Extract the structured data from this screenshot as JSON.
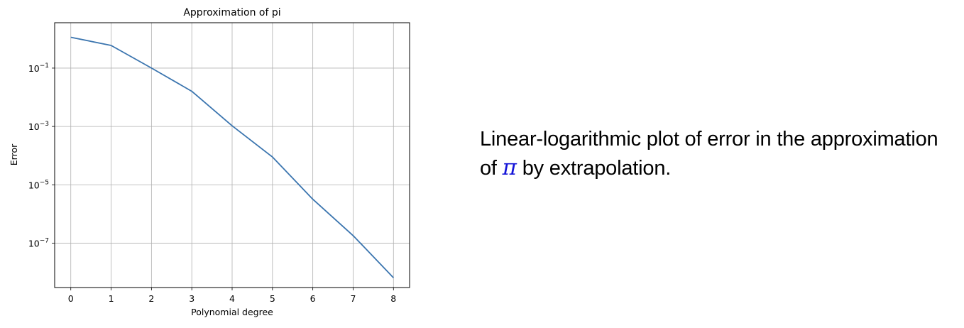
{
  "chart_data": {
    "type": "line",
    "title": "Approximation of pi",
    "xlabel": "Polynomial degree",
    "ylabel": "Error",
    "yscale": "log",
    "grid": true,
    "x": [
      0,
      1,
      2,
      3,
      4,
      5,
      6,
      7,
      8
    ],
    "xticks": [
      "0",
      "1",
      "2",
      "3",
      "4",
      "5",
      "6",
      "7",
      "8"
    ],
    "yticks": [
      {
        "value": 0.1,
        "base": "10",
        "exp": "−1"
      },
      {
        "value": 0.001,
        "base": "10",
        "exp": "−3"
      },
      {
        "value": 1e-05,
        "base": "10",
        "exp": "−5"
      },
      {
        "value": 1e-07,
        "base": "10",
        "exp": "−7"
      }
    ],
    "xlim": [
      -0.4,
      8.4
    ],
    "ylim": [
      3e-09,
      3.6
    ],
    "series": [
      {
        "values": [
          1.14,
          0.6,
          0.1,
          0.016,
          0.00105,
          9e-05,
          3.2e-06,
          1.8e-07,
          6.5e-09
        ],
        "color": "#3b75af"
      }
    ]
  },
  "caption": {
    "line1": "Linear-logarithmic plot of error in the approximation",
    "line2_prefix": "of ",
    "symbol": "π",
    "line2_suffix": " by extrapolation.",
    "symbol_color": "#1515d8"
  }
}
